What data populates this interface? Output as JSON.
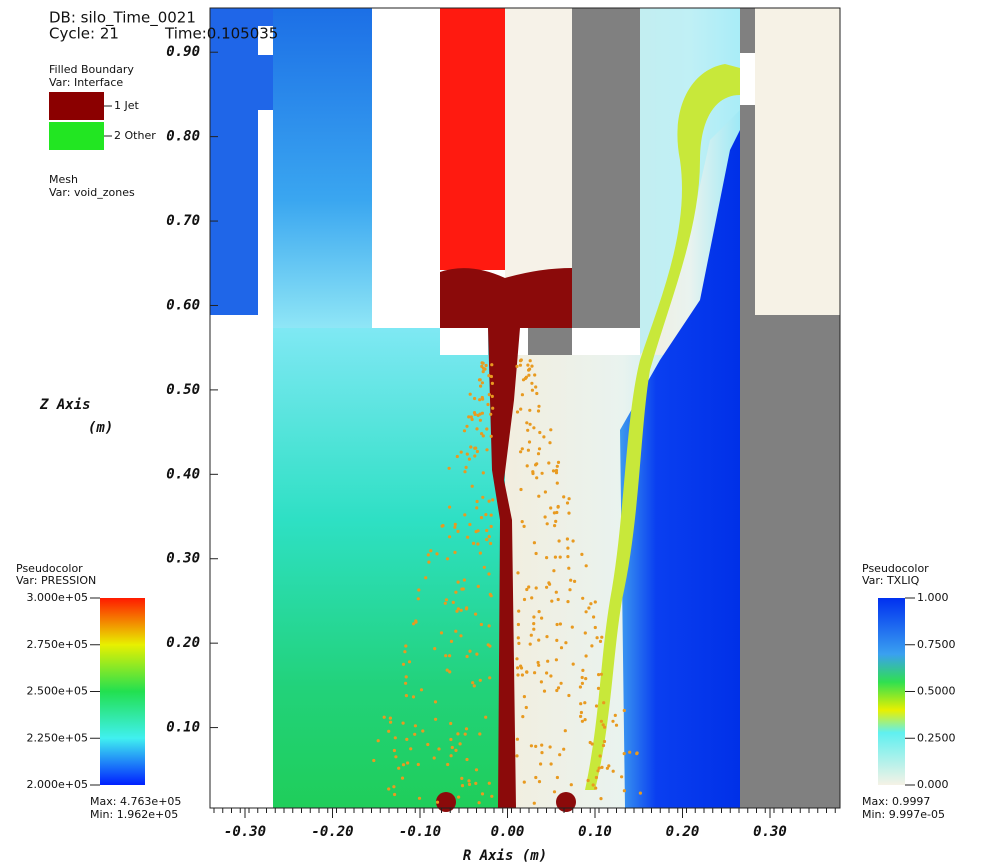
{
  "chart_data": {
    "type": "field",
    "database": "DB: silo_Time_0021",
    "cycle": "Cycle: 21",
    "time": "Time:0.105035",
    "boundary_legend": {
      "title": "Filled Boundary",
      "var": "Var: Interface",
      "items": [
        {
          "label": "1 Jet",
          "color": "#8b0000"
        },
        {
          "label": "2 Other",
          "color": "#22e622"
        }
      ]
    },
    "mesh_legend": {
      "title": "Mesh",
      "var": "Var: void_zones"
    },
    "pressure_legend": {
      "title": "Pseudocolor",
      "var": "Var: PRESSION",
      "lim": [
        200000,
        300000
      ],
      "ticks": [
        {
          "value": 300000,
          "label": "3.000e+05"
        },
        {
          "value": 275000,
          "label": "2.750e+05"
        },
        {
          "value": 250000,
          "label": "2.500e+05"
        },
        {
          "value": 225000,
          "label": "2.250e+05"
        },
        {
          "value": 200000,
          "label": "2.000e+05"
        }
      ],
      "max": "Max: 4.763e+05",
      "min": "Min: 1.962e+05"
    },
    "txliq_legend": {
      "title": "Pseudocolor",
      "var": "Var: TXLIQ",
      "lim": [
        0,
        1
      ],
      "ticks": [
        {
          "value": 1,
          "label": "1.000"
        },
        {
          "value": 0.75,
          "label": "0.7500"
        },
        {
          "value": 0.5,
          "label": "0.5000"
        },
        {
          "value": 0.25,
          "label": "0.2500"
        },
        {
          "value": 0,
          "label": "0.000"
        }
      ],
      "max": "Max: 0.9997",
      "min": "Min: 9.997e-05"
    },
    "xlabel": "R Axis  (m)",
    "ylabel": "Z Axis",
    "ylabel_unit": "(m)",
    "xlim": [
      -0.34,
      0.38
    ],
    "ylim": [
      0,
      0.95
    ],
    "xticks": [
      {
        "value": -0.3,
        "label": "-0.30"
      },
      {
        "value": -0.2,
        "label": "-0.20"
      },
      {
        "value": -0.1,
        "label": "-0.10"
      },
      {
        "value": 0,
        "label": "0.00"
      },
      {
        "value": 0.1,
        "label": "0.10"
      },
      {
        "value": 0.2,
        "label": "0.20"
      },
      {
        "value": 0.3,
        "label": "0.30"
      }
    ],
    "yticks": [
      {
        "value": 0.1,
        "label": "0.10"
      },
      {
        "value": 0.2,
        "label": "0.20"
      },
      {
        "value": 0.3,
        "label": "0.30"
      },
      {
        "value": 0.4,
        "label": "0.40"
      },
      {
        "value": 0.5,
        "label": "0.50"
      },
      {
        "value": 0.6,
        "label": "0.60"
      },
      {
        "value": 0.7,
        "label": "0.70"
      },
      {
        "value": 0.8,
        "label": "0.80"
      },
      {
        "value": 0.9,
        "label": "0.90"
      }
    ]
  }
}
